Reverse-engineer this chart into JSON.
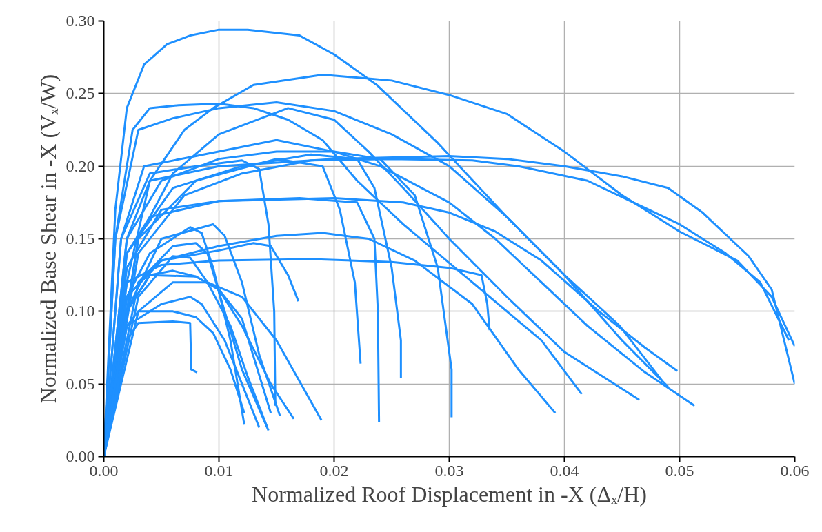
{
  "chart_data": {
    "type": "line",
    "xlabel": "Normalized Roof Displacement in -X (Δₓ/H)",
    "ylabel": "Normalized Base Shear in -X (Vₓ/W)",
    "xlim": [
      0,
      0.06
    ],
    "ylim": [
      0,
      0.3
    ],
    "xticks": [
      {
        "value": 0,
        "label": "0.00"
      },
      {
        "value": 0.01,
        "label": "0.01"
      },
      {
        "value": 0.02,
        "label": "0.02"
      },
      {
        "value": 0.03,
        "label": "0.03"
      },
      {
        "value": 0.04,
        "label": "0.04"
      },
      {
        "value": 0.05,
        "label": "0.05"
      },
      {
        "value": 0.06,
        "label": "0.06"
      }
    ],
    "yticks": [
      {
        "value": 0,
        "label": "0.00"
      },
      {
        "value": 0.05,
        "label": "0.05"
      },
      {
        "value": 0.1,
        "label": "0.10"
      },
      {
        "value": 0.15,
        "label": "0.15"
      },
      {
        "value": 0.2,
        "label": "0.20"
      },
      {
        "value": 0.25,
        "label": "0.25"
      },
      {
        "value": 0.3,
        "label": "0.30"
      }
    ],
    "grid": true,
    "marker": "none",
    "line_style": "solid",
    "series": [
      {
        "color": "#1e90ff",
        "x": [
          0,
          0.001,
          0.002,
          0.0035,
          0.0055,
          0.0075,
          0.01,
          0.0125,
          0.017,
          0.02,
          0.0237,
          0.029,
          0.035,
          0.04,
          0.0448,
          0.0485
        ],
        "values": [
          0,
          0.17,
          0.24,
          0.27,
          0.284,
          0.29,
          0.294,
          0.294,
          0.29,
          0.277,
          0.256,
          0.216,
          0.165,
          0.125,
          0.09,
          0.052
        ]
      },
      {
        "color": "#1e90ff",
        "x": [
          0,
          0.002,
          0.004,
          0.007,
          0.0095,
          0.013,
          0.019,
          0.025,
          0.03,
          0.035,
          0.04,
          0.045,
          0.05,
          0.055,
          0.058,
          0.06
        ],
        "values": [
          0,
          0.12,
          0.19,
          0.225,
          0.24,
          0.256,
          0.263,
          0.259,
          0.249,
          0.236,
          0.21,
          0.18,
          0.155,
          0.135,
          0.11,
          0.076
        ]
      },
      {
        "color": "#1e90ff",
        "x": [
          0,
          0.001,
          0.0025,
          0.004,
          0.0065,
          0.01,
          0.013,
          0.016,
          0.019,
          0.022,
          0.026,
          0.032,
          0.038,
          0.0415
        ],
        "values": [
          0,
          0.15,
          0.225,
          0.24,
          0.242,
          0.243,
          0.24,
          0.232,
          0.218,
          0.19,
          0.16,
          0.12,
          0.08,
          0.043
        ]
      },
      {
        "color": "#1e90ff",
        "x": [
          0,
          0.001,
          0.003,
          0.006,
          0.01,
          0.015,
          0.02,
          0.025,
          0.03,
          0.035,
          0.04,
          0.045,
          0.049
        ],
        "values": [
          0,
          0.15,
          0.225,
          0.233,
          0.24,
          0.244,
          0.238,
          0.222,
          0.2,
          0.165,
          0.125,
          0.08,
          0.048
        ]
      },
      {
        "color": "#1e90ff",
        "x": [
          0,
          0.003,
          0.006,
          0.01,
          0.016,
          0.02,
          0.023,
          0.026,
          0.03,
          0.035,
          0.04,
          0.0465
        ],
        "values": [
          0,
          0.15,
          0.195,
          0.222,
          0.24,
          0.232,
          0.21,
          0.185,
          0.15,
          0.11,
          0.072,
          0.039
        ]
      },
      {
        "color": "#1e90ff",
        "x": [
          0,
          0.0015,
          0.0035,
          0.008,
          0.015,
          0.02,
          0.024,
          0.03,
          0.034,
          0.038,
          0.042,
          0.047,
          0.0513
        ],
        "values": [
          0,
          0.15,
          0.2,
          0.207,
          0.218,
          0.21,
          0.2,
          0.175,
          0.15,
          0.12,
          0.09,
          0.058,
          0.035
        ]
      },
      {
        "color": "#1e90ff",
        "x": [
          0,
          0.002,
          0.004,
          0.01,
          0.02,
          0.03,
          0.035,
          0.04,
          0.045,
          0.049,
          0.052,
          0.056,
          0.058,
          0.06
        ],
        "values": [
          0,
          0.15,
          0.19,
          0.2,
          0.205,
          0.207,
          0.205,
          0.2,
          0.193,
          0.185,
          0.168,
          0.138,
          0.115,
          0.05
        ]
      },
      {
        "color": "#1e90ff",
        "x": [
          0,
          0.003,
          0.007,
          0.012,
          0.018,
          0.025,
          0.032,
          0.036,
          0.042,
          0.046,
          0.05,
          0.054,
          0.057,
          0.0595
        ],
        "values": [
          0,
          0.14,
          0.18,
          0.195,
          0.204,
          0.205,
          0.204,
          0.2,
          0.19,
          0.175,
          0.16,
          0.14,
          0.12,
          0.08
        ]
      },
      {
        "color": "#1e90ff",
        "x": [
          0,
          0.002,
          0.005,
          0.01,
          0.015,
          0.02,
          0.024,
          0.027,
          0.029,
          0.0302,
          0.0302
        ],
        "values": [
          0,
          0.15,
          0.19,
          0.205,
          0.21,
          0.21,
          0.205,
          0.18,
          0.13,
          0.06,
          0.027
        ]
      },
      {
        "color": "#1e90ff",
        "x": [
          0,
          0.0015,
          0.004,
          0.008,
          0.012,
          0.0135,
          0.0143,
          0.0148,
          0.0149
        ],
        "values": [
          0,
          0.15,
          0.195,
          0.2,
          0.204,
          0.198,
          0.16,
          0.1,
          0.035
        ]
      },
      {
        "color": "#1e90ff",
        "x": [
          0,
          0.002,
          0.006,
          0.012,
          0.018,
          0.022,
          0.0235,
          0.025,
          0.0258,
          0.0258
        ],
        "values": [
          0,
          0.14,
          0.185,
          0.2,
          0.208,
          0.205,
          0.185,
          0.13,
          0.08,
          0.054
        ]
      },
      {
        "color": "#1e90ff",
        "x": [
          0,
          0.003,
          0.008,
          0.015,
          0.019,
          0.0205,
          0.0218,
          0.0223
        ],
        "values": [
          0,
          0.15,
          0.19,
          0.205,
          0.2,
          0.17,
          0.12,
          0.064
        ]
      },
      {
        "color": "#1e90ff",
        "x": [
          0,
          0.002,
          0.005,
          0.01,
          0.017,
          0.022,
          0.0235,
          0.0238,
          0.0239
        ],
        "values": [
          0,
          0.13,
          0.17,
          0.176,
          0.178,
          0.175,
          0.15,
          0.1,
          0.024
        ]
      },
      {
        "color": "#1e90ff",
        "x": [
          0,
          0.002,
          0.004,
          0.01,
          0.02,
          0.026,
          0.03,
          0.034,
          0.038,
          0.043,
          0.047,
          0.0498
        ],
        "values": [
          0,
          0.14,
          0.165,
          0.176,
          0.178,
          0.175,
          0.168,
          0.155,
          0.135,
          0.1,
          0.075,
          0.059
        ]
      },
      {
        "color": "#1e90ff",
        "x": [
          0,
          0.002,
          0.005,
          0.01,
          0.018,
          0.025,
          0.03,
          0.0328,
          0.0333,
          0.0335
        ],
        "values": [
          0,
          0.12,
          0.132,
          0.135,
          0.136,
          0.134,
          0.13,
          0.125,
          0.105,
          0.087
        ]
      },
      {
        "color": "#1e90ff",
        "x": [
          0,
          0.002,
          0.005,
          0.01,
          0.015,
          0.019,
          0.023,
          0.027,
          0.032,
          0.036,
          0.0392
        ],
        "values": [
          0,
          0.11,
          0.135,
          0.145,
          0.152,
          0.154,
          0.15,
          0.135,
          0.105,
          0.06,
          0.03
        ]
      },
      {
        "color": "#1e90ff",
        "x": [
          0,
          0.002,
          0.005,
          0.01,
          0.013,
          0.0145,
          0.016,
          0.0169
        ],
        "values": [
          0,
          0.11,
          0.135,
          0.142,
          0.147,
          0.145,
          0.125,
          0.107
        ]
      },
      {
        "color": "#1e90ff",
        "x": [
          0,
          0.002,
          0.004,
          0.0075,
          0.0085,
          0.0095,
          0.011,
          0.0122
        ],
        "values": [
          0,
          0.11,
          0.14,
          0.158,
          0.154,
          0.13,
          0.08,
          0.022
        ]
      },
      {
        "color": "#1e90ff",
        "x": [
          0,
          0.002,
          0.005,
          0.0095,
          0.0105,
          0.012,
          0.0135,
          0.0153
        ],
        "values": [
          0,
          0.1,
          0.15,
          0.16,
          0.152,
          0.12,
          0.07,
          0.028
        ]
      },
      {
        "color": "#1e90ff",
        "x": [
          0,
          0.003,
          0.006,
          0.008,
          0.009,
          0.0105,
          0.012,
          0.0143
        ],
        "values": [
          0,
          0.12,
          0.145,
          0.147,
          0.14,
          0.1,
          0.06,
          0.018
        ]
      },
      {
        "color": "#1e90ff",
        "x": [
          0,
          0.003,
          0.006,
          0.0075,
          0.009,
          0.011,
          0.0125,
          0.0142
        ],
        "values": [
          0,
          0.11,
          0.138,
          0.137,
          0.12,
          0.09,
          0.055,
          0.02
        ]
      },
      {
        "color": "#1e90ff",
        "x": [
          0,
          0.002,
          0.004,
          0.008,
          0.01,
          0.012,
          0.0145,
          0.0165
        ],
        "values": [
          0,
          0.1,
          0.125,
          0.124,
          0.115,
          0.09,
          0.05,
          0.026
        ]
      },
      {
        "color": "#1e90ff",
        "x": [
          0,
          0.003,
          0.006,
          0.009,
          0.012,
          0.015,
          0.0189
        ],
        "values": [
          0,
          0.1,
          0.12,
          0.12,
          0.11,
          0.08,
          0.025
        ]
      },
      {
        "color": "#1e90ff",
        "x": [
          0,
          0.002,
          0.005,
          0.0075,
          0.0085,
          0.0105,
          0.012,
          0.0135
        ],
        "values": [
          0,
          0.09,
          0.105,
          0.11,
          0.105,
          0.08,
          0.05,
          0.02
        ]
      },
      {
        "color": "#1e90ff",
        "x": [
          0,
          0.002,
          0.003,
          0.006,
          0.008,
          0.0095,
          0.011,
          0.0122
        ],
        "values": [
          0,
          0.09,
          0.1,
          0.1,
          0.096,
          0.085,
          0.06,
          0.03
        ]
      },
      {
        "color": "#1e90ff",
        "x": [
          0,
          0.002,
          0.003,
          0.006,
          0.0075,
          0.0076,
          0.0081
        ],
        "values": [
          0,
          0.08,
          0.092,
          0.093,
          0.092,
          0.06,
          0.058
        ]
      },
      {
        "color": "#1e90ff",
        "x": [
          0,
          0.002,
          0.004,
          0.006,
          0.008,
          0.01,
          0.012,
          0.0145
        ],
        "values": [
          0,
          0.1,
          0.125,
          0.128,
          0.124,
          0.115,
          0.095,
          0.03
        ]
      }
    ]
  }
}
